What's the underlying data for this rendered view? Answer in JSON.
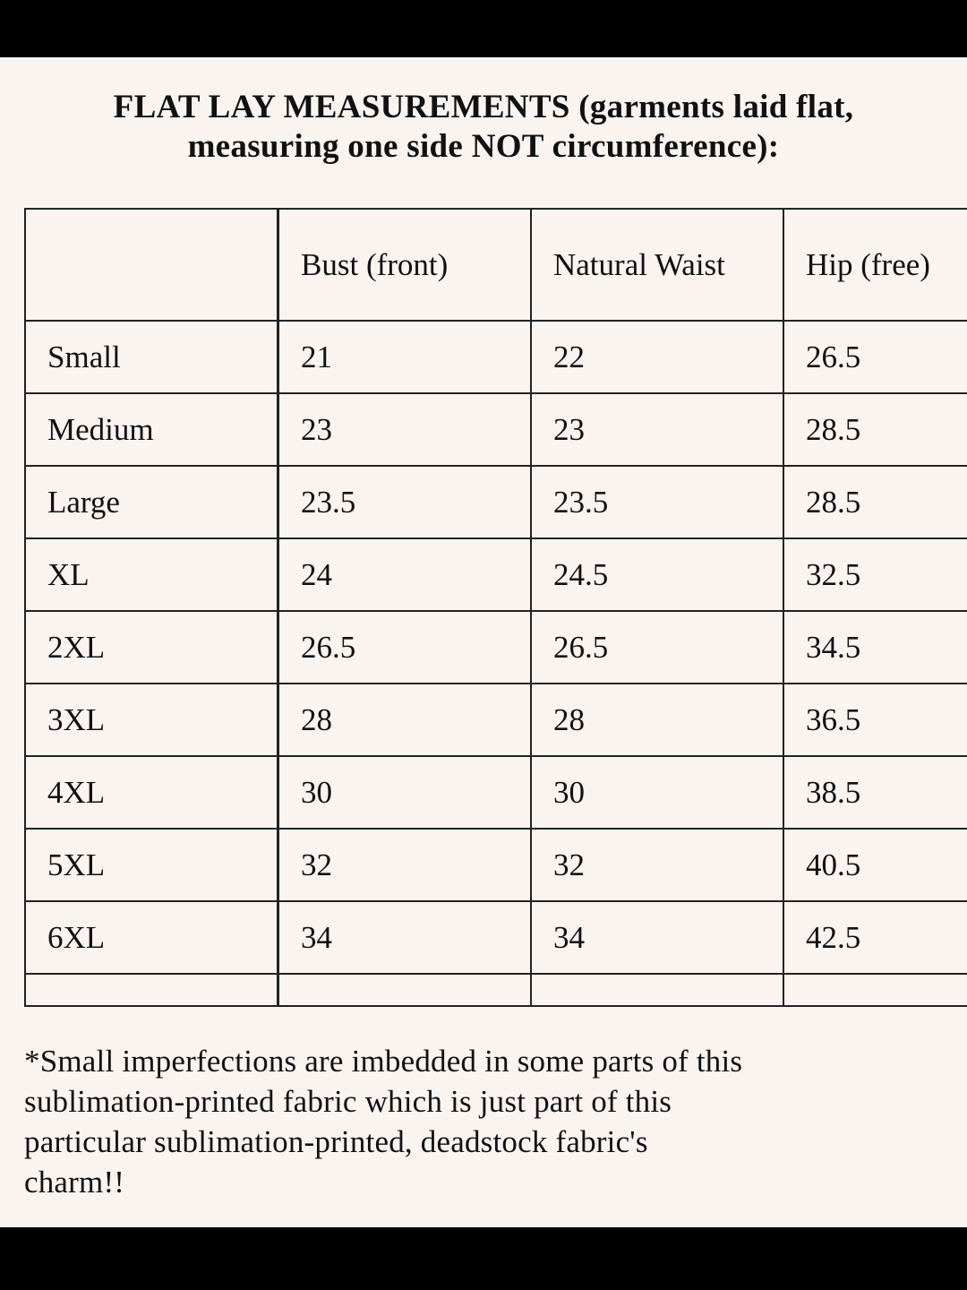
{
  "title_lines": [
    "FLAT LAY MEASUREMENTS (garments laid flat,",
    "measuring one side NOT circumference):"
  ],
  "table": {
    "columns": [
      "Bust (front)",
      "Natural Waist",
      "Hip (free)"
    ],
    "rows": [
      [
        "Small",
        "21",
        "22",
        "26.5"
      ],
      [
        "Medium",
        "23",
        "23",
        "28.5"
      ],
      [
        "Large",
        "23.5",
        "23.5",
        "28.5"
      ],
      [
        "XL",
        "24",
        "24.5",
        "32.5"
      ],
      [
        "2XL",
        "26.5",
        "26.5",
        "34.5"
      ],
      [
        "3XL",
        "28",
        "28",
        "36.5"
      ],
      [
        "4XL",
        "30",
        "30",
        "38.5"
      ],
      [
        "5XL",
        "32",
        "32",
        "40.5"
      ],
      [
        "6XL",
        "34",
        "34",
        "42.5"
      ]
    ]
  },
  "note_lines": [
    "*Small imperfections are imbedded in some parts of this",
    "sublimation-printed fabric which is just part of this",
    "particular sublimation-printed, deadstock fabric's",
    "charm!!"
  ]
}
